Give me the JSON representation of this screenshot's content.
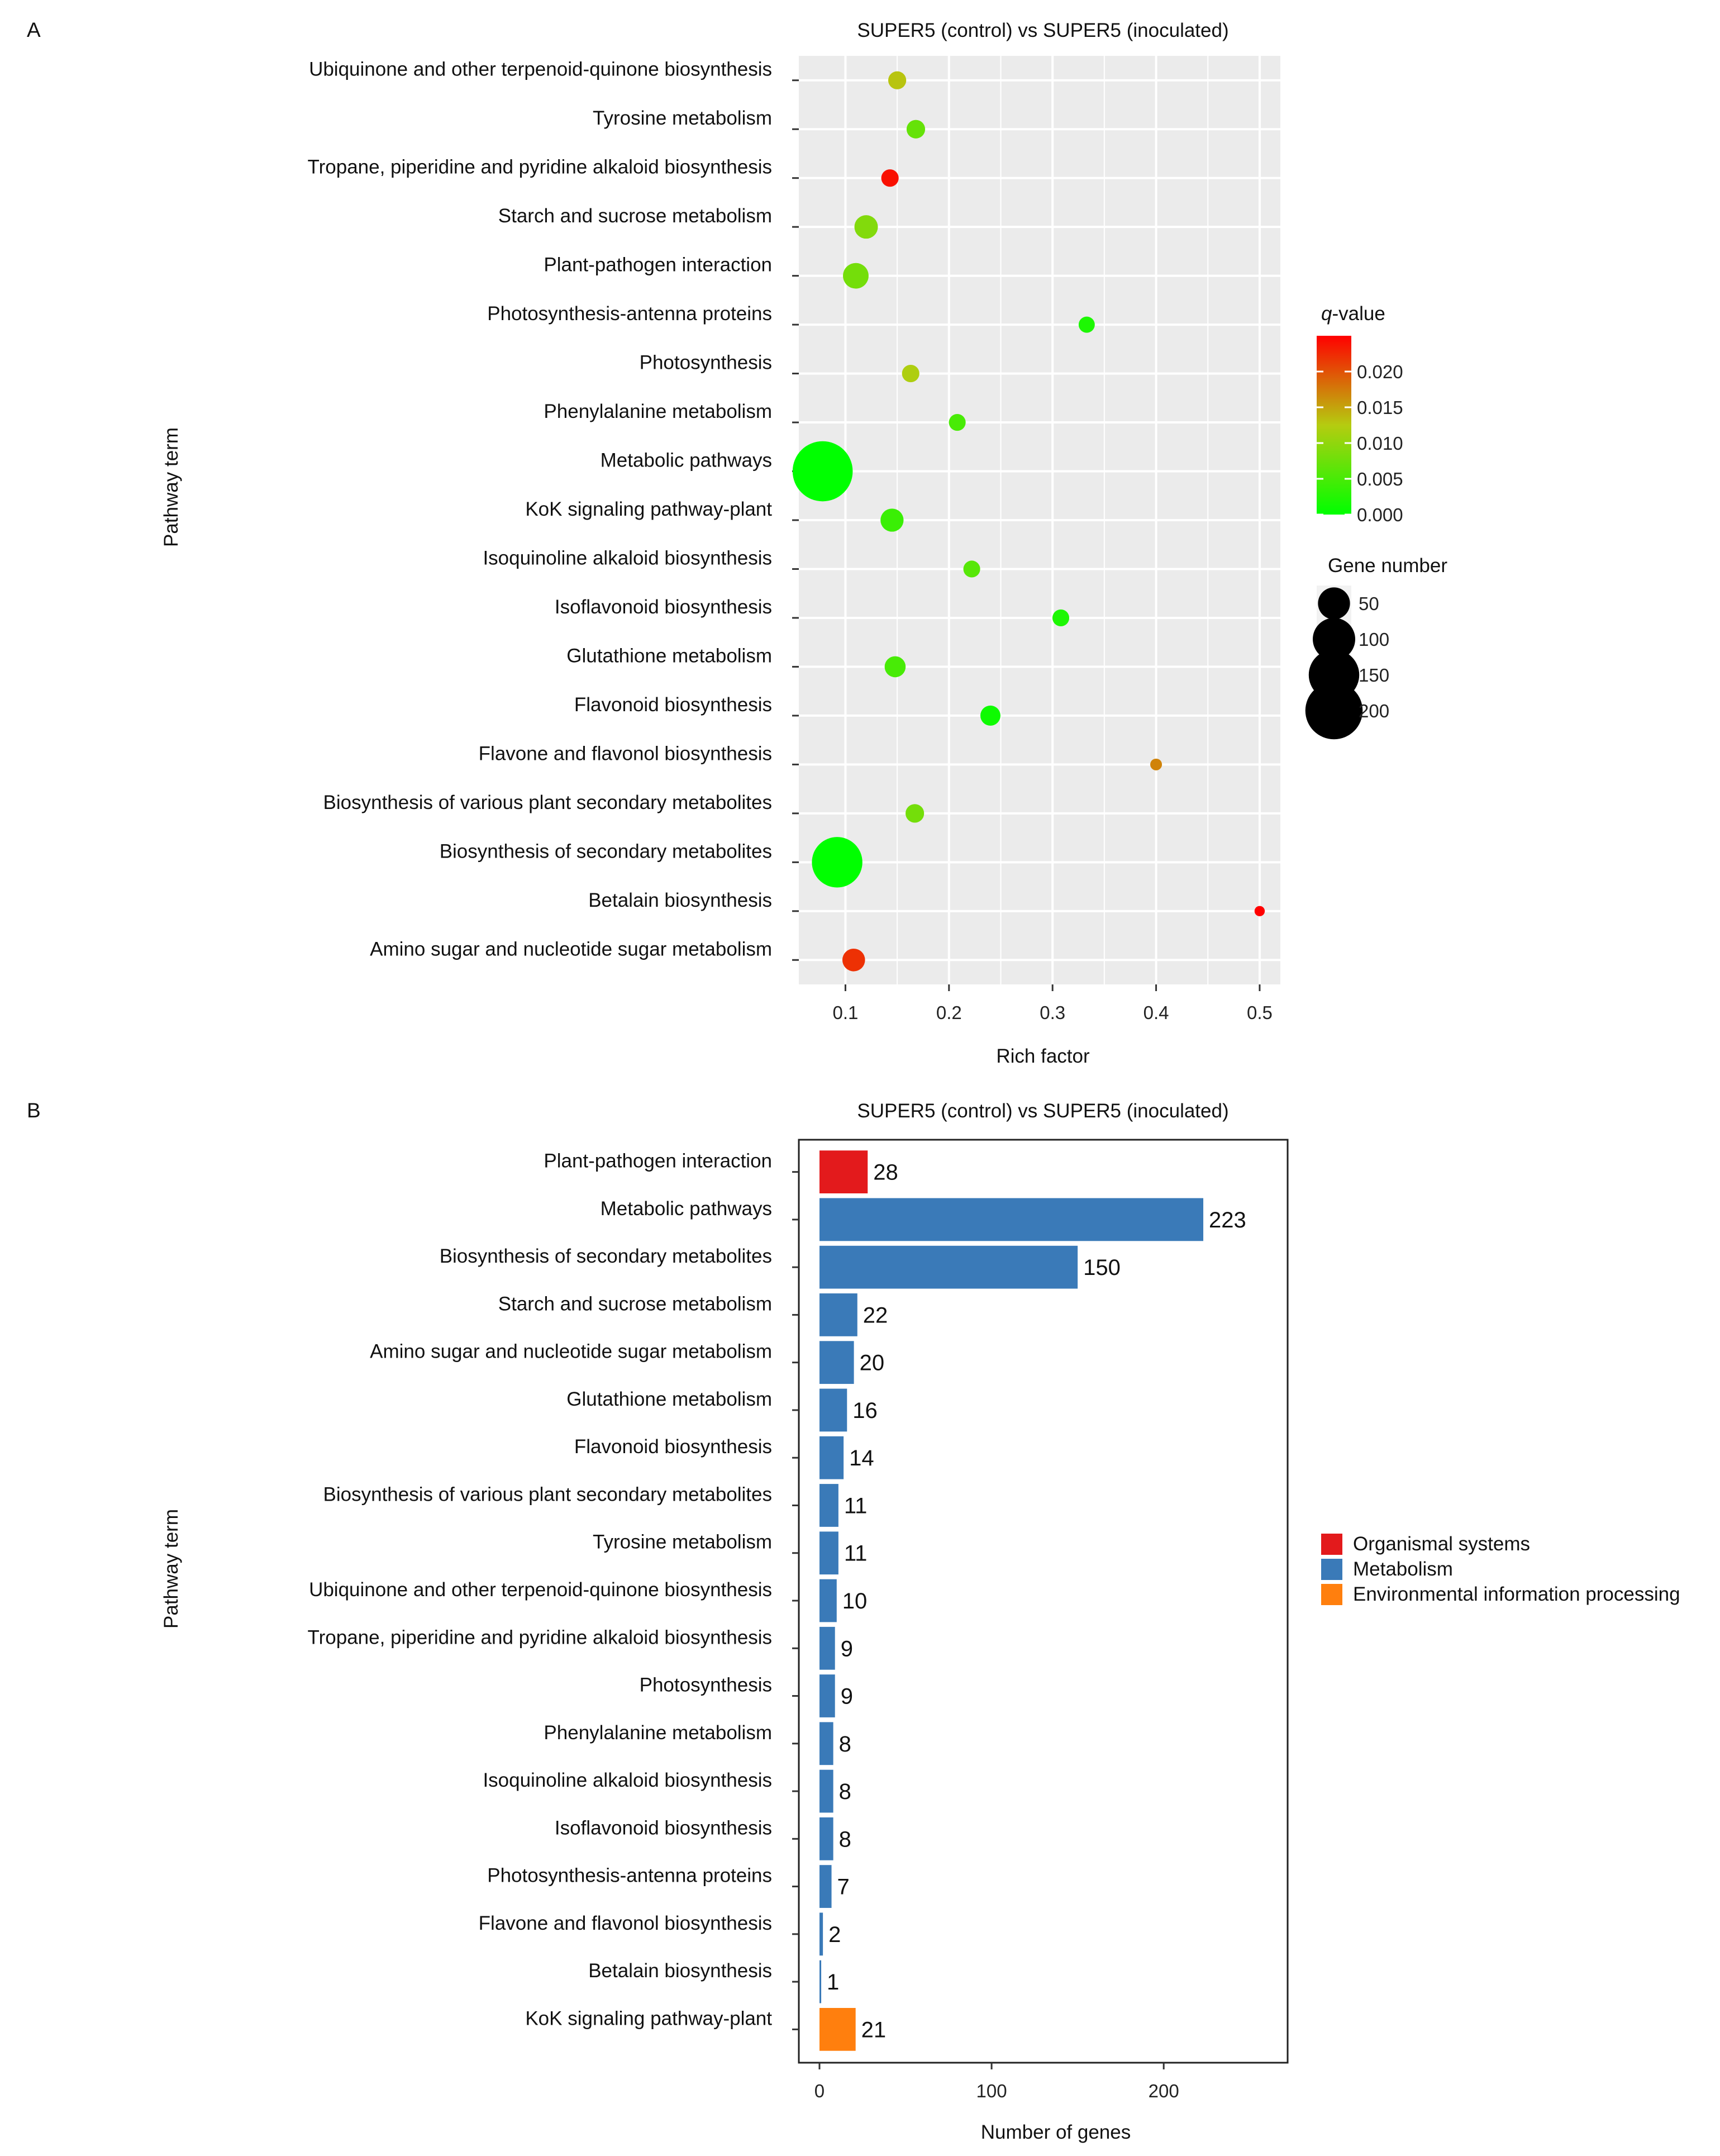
{
  "chart_data": [
    {
      "panel": "A",
      "type": "scatter",
      "title": "SUPER5 (control) vs SUPER5 (inoculated)",
      "xlabel": "Rich factor",
      "ylabel": "Pathway term",
      "xlim": [
        0.055,
        0.52
      ],
      "xticks": [
        0.1,
        0.2,
        0.3,
        0.4,
        0.5
      ],
      "xtick_labels": [
        "0.1",
        "0.2",
        "0.3",
        "0.4",
        "0.5"
      ],
      "grid": true,
      "categories": [
        "Ubiquinone and other terpenoid-quinone biosynthesis",
        "Tyrosine metabolism",
        "Tropane, piperidine and pyridine alkaloid biosynthesis",
        "Starch and sucrose metabolism",
        "Plant-pathogen interaction",
        "Photosynthesis-antenna proteins",
        "Photosynthesis",
        "Phenylalanine metabolism",
        "Metabolic pathways",
        "KoK signaling pathway-plant",
        "Isoquinoline alkaloid biosynthesis",
        "Isoflavonoid biosynthesis",
        "Glutathione metabolism",
        "Flavonoid biosynthesis",
        "Flavone and flavonol biosynthesis",
        "Biosynthesis of various plant secondary metabolites",
        "Biosynthesis of secondary metabolites",
        "Betalain biosynthesis",
        "Amino sugar and nucleotide sugar metabolism"
      ],
      "rich_factor": [
        0.15,
        0.168,
        0.143,
        0.12,
        0.11,
        0.333,
        0.163,
        0.208,
        0.078,
        0.145,
        0.222,
        0.308,
        0.148,
        0.24,
        0.4,
        0.167,
        0.092,
        0.5,
        0.108
      ],
      "q_value": [
        0.013,
        0.007,
        0.024,
        0.009,
        0.008,
        0.002,
        0.012,
        0.005,
        0.0,
        0.004,
        0.006,
        0.002,
        0.005,
        0.001,
        0.017,
        0.008,
        0.0,
        0.025,
        0.022
      ],
      "gene_number": [
        10,
        11,
        9,
        22,
        28,
        7,
        9,
        8,
        223,
        21,
        8,
        8,
        16,
        14,
        2,
        11,
        150,
        1,
        20
      ],
      "color_legend": {
        "title_italic": "q",
        "title_rest": "-value",
        "min": 0.0,
        "max": 0.025,
        "ticks": [
          0.02,
          0.015,
          0.01,
          0.005,
          0.0
        ],
        "tick_labels": [
          "0.020",
          "0.015",
          "0.010",
          "0.005",
          "0.000"
        ],
        "colors": [
          "#00ff00",
          "#ff0000"
        ]
      },
      "size_legend": {
        "title": "Gene number",
        "values": [
          50,
          100,
          150,
          200
        ],
        "labels": [
          "50",
          "100",
          "150",
          "200"
        ]
      },
      "panel_background": "#ebebeb"
    },
    {
      "panel": "B",
      "type": "bar",
      "orientation": "horizontal",
      "title": "SUPER5 (control) vs SUPER5 (inoculated)",
      "xlabel": "Number of genes",
      "ylabel": "Pathway term",
      "xlim": [
        -12,
        272
      ],
      "xticks": [
        0,
        100,
        200
      ],
      "xtick_labels": [
        "0",
        "100",
        "200"
      ],
      "categories": [
        "Plant-pathogen interaction",
        "Metabolic pathways",
        "Biosynthesis of secondary metabolites",
        "Starch and sucrose metabolism",
        "Amino sugar and nucleotide sugar metabolism",
        "Glutathione metabolism",
        "Flavonoid biosynthesis",
        "Biosynthesis of various plant secondary metabolites",
        "Tyrosine metabolism",
        "Ubiquinone and other terpenoid-quinone biosynthesis",
        "Tropane, piperidine and pyridine alkaloid biosynthesis",
        "Photosynthesis",
        "Phenylalanine metabolism",
        "Isoquinoline alkaloid biosynthesis",
        "Isoflavonoid biosynthesis",
        "Photosynthesis-antenna proteins",
        "Flavone and flavonol biosynthesis",
        "Betalain biosynthesis",
        "KoK signaling pathway-plant"
      ],
      "values": [
        28,
        223,
        150,
        22,
        20,
        16,
        14,
        11,
        11,
        10,
        9,
        9,
        8,
        8,
        8,
        7,
        2,
        1,
        21
      ],
      "value_labels": [
        "28",
        "223",
        "150",
        "22",
        "20",
        "16",
        "14",
        "11",
        "11",
        "10",
        "9",
        "9",
        "8",
        "8",
        "8",
        "7",
        "2",
        "1",
        "21"
      ],
      "groups": [
        0,
        1,
        1,
        1,
        1,
        1,
        1,
        1,
        1,
        1,
        1,
        1,
        1,
        1,
        1,
        1,
        1,
        1,
        2
      ],
      "legend": [
        {
          "name": "Organismal systems",
          "color": "#e31a1c"
        },
        {
          "name": "Metabolism",
          "color": "#3a7ab8"
        },
        {
          "name": "Environmental information processing",
          "color": "#ff7f0e"
        }
      ]
    }
  ]
}
